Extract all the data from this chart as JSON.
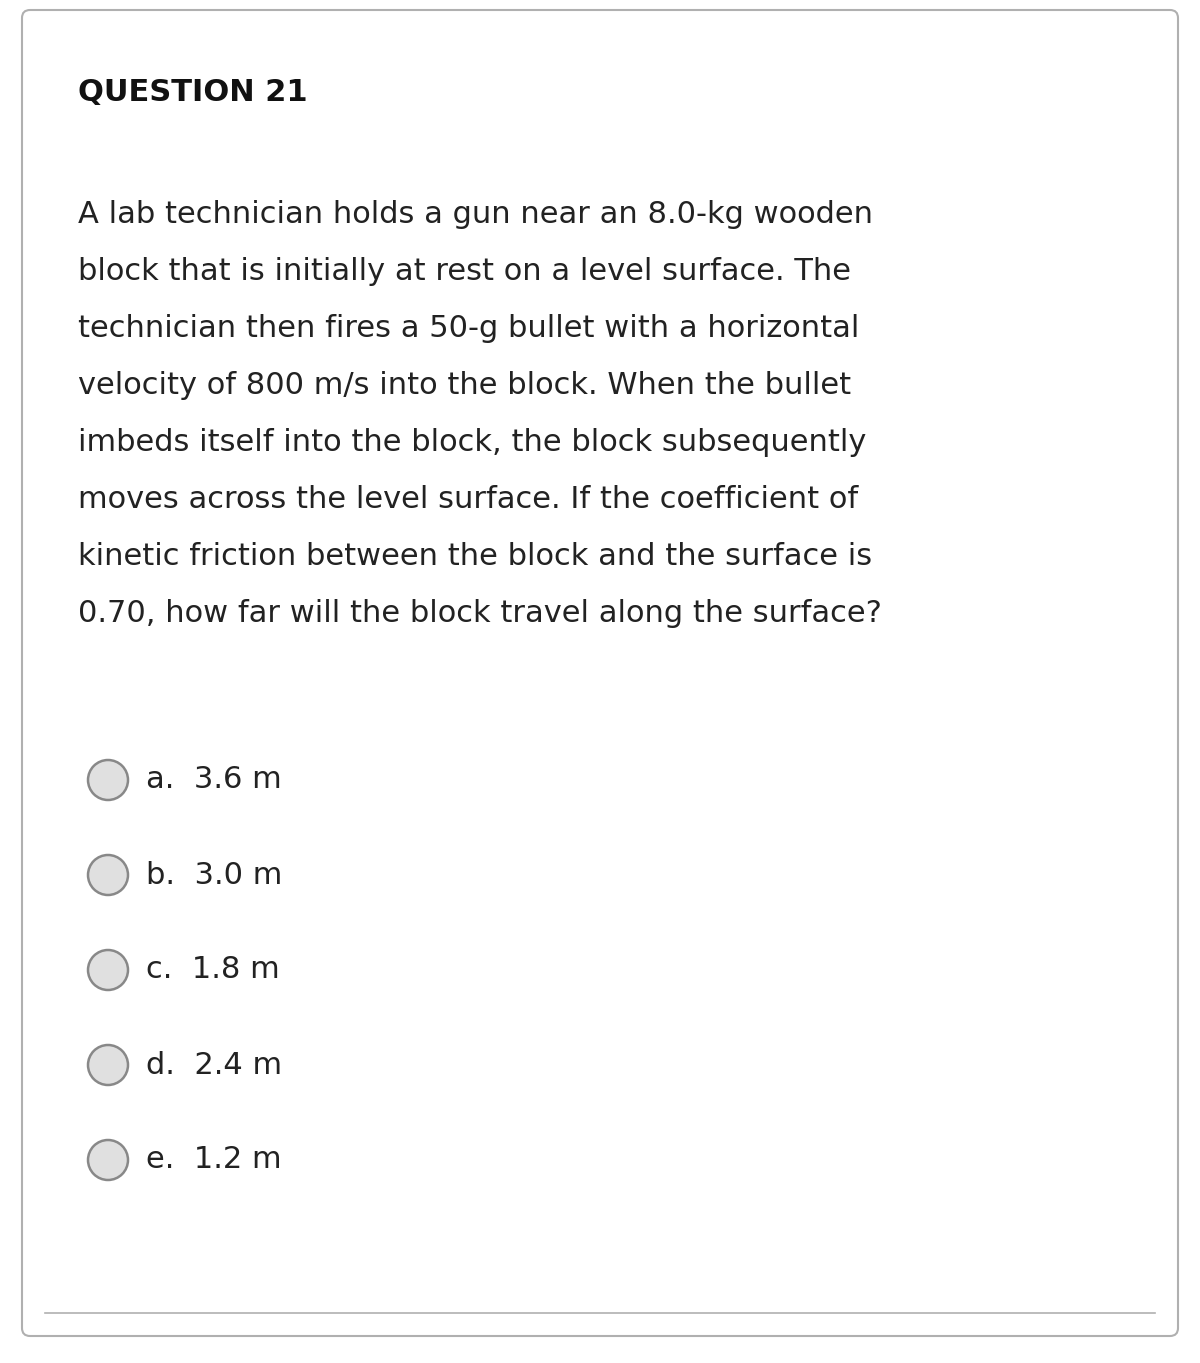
{
  "title": "QUESTION 21",
  "question_lines": [
    "A lab technician holds a gun near an 8.0-kg wooden",
    "block that is initially at rest on a level surface. The",
    "technician then fires a 50-g bullet with a horizontal",
    "velocity of 800 m/s into the block. When the bullet",
    "imbeds itself into the block, the block subsequently",
    "moves across the level surface. If the coefficient of",
    "kinetic friction between the block and the surface is",
    "0.70, how far will the block travel along the surface?"
  ],
  "option_labels": [
    "a.  3.6 m",
    "b.  3.0 m",
    "c.  1.8 m",
    "d.  2.4 m",
    "e.  1.2 m"
  ],
  "bg_color": "#ffffff",
  "border_color": "#b0b0b0",
  "text_color": "#222222",
  "title_color": "#111111",
  "circle_fill": "#e0e0e0",
  "circle_edge": "#888888",
  "title_fontsize": 22,
  "question_fontsize": 22,
  "option_fontsize": 22,
  "fig_width": 12.0,
  "fig_height": 13.63
}
